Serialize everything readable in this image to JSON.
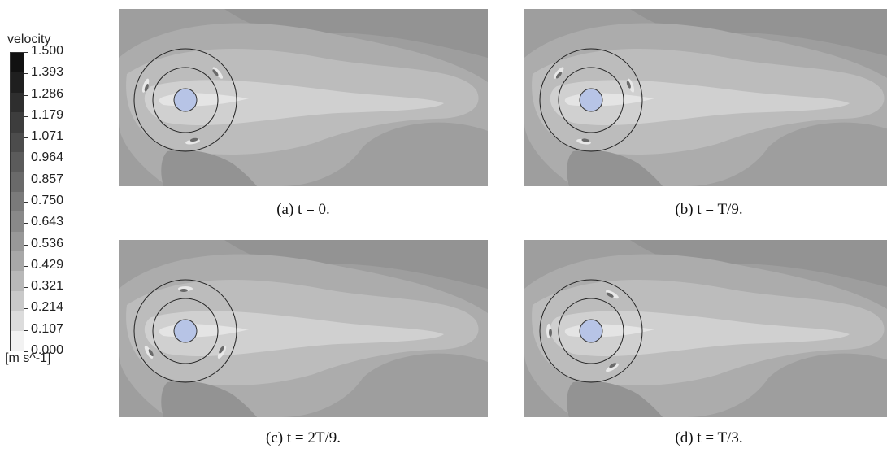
{
  "legend": {
    "title": "velocity",
    "unit": "[m s^-1]",
    "ticks": [
      "1.500",
      "1.393",
      "1.286",
      "1.179",
      "1.071",
      "0.964",
      "0.857",
      "0.750",
      "0.643",
      "0.536",
      "0.429",
      "0.321",
      "0.214",
      "0.107",
      "0.000"
    ],
    "colors": [
      "#111111",
      "#1f1f1f",
      "#2e2e2e",
      "#3d3d3d",
      "#4c4c4c",
      "#5b5b5b",
      "#6a6a6a",
      "#7a7a7a",
      "#898989",
      "#989898",
      "#a8a8a8",
      "#b8b8b8",
      "#c9c9c9",
      "#dcdcdc",
      "#f2f2f2"
    ]
  },
  "panels": [
    {
      "id": "a",
      "caption": "(a) t = 0."
    },
    {
      "id": "b",
      "caption": "(b) t = T/9."
    },
    {
      "id": "c",
      "caption": "(c) t = 2T/9."
    },
    {
      "id": "d",
      "caption": "(d) t = T/3."
    }
  ],
  "colors": {
    "background_flow": "#9e9e9e",
    "band_outer": "#acacac",
    "band_mid": "#bcbcbc",
    "wake": "#d0d0d0",
    "near_wake": "#e4e4e4",
    "dark_region": "#939393",
    "cylinder": "#b7c4e6",
    "rotor_ring": "#222222"
  }
}
